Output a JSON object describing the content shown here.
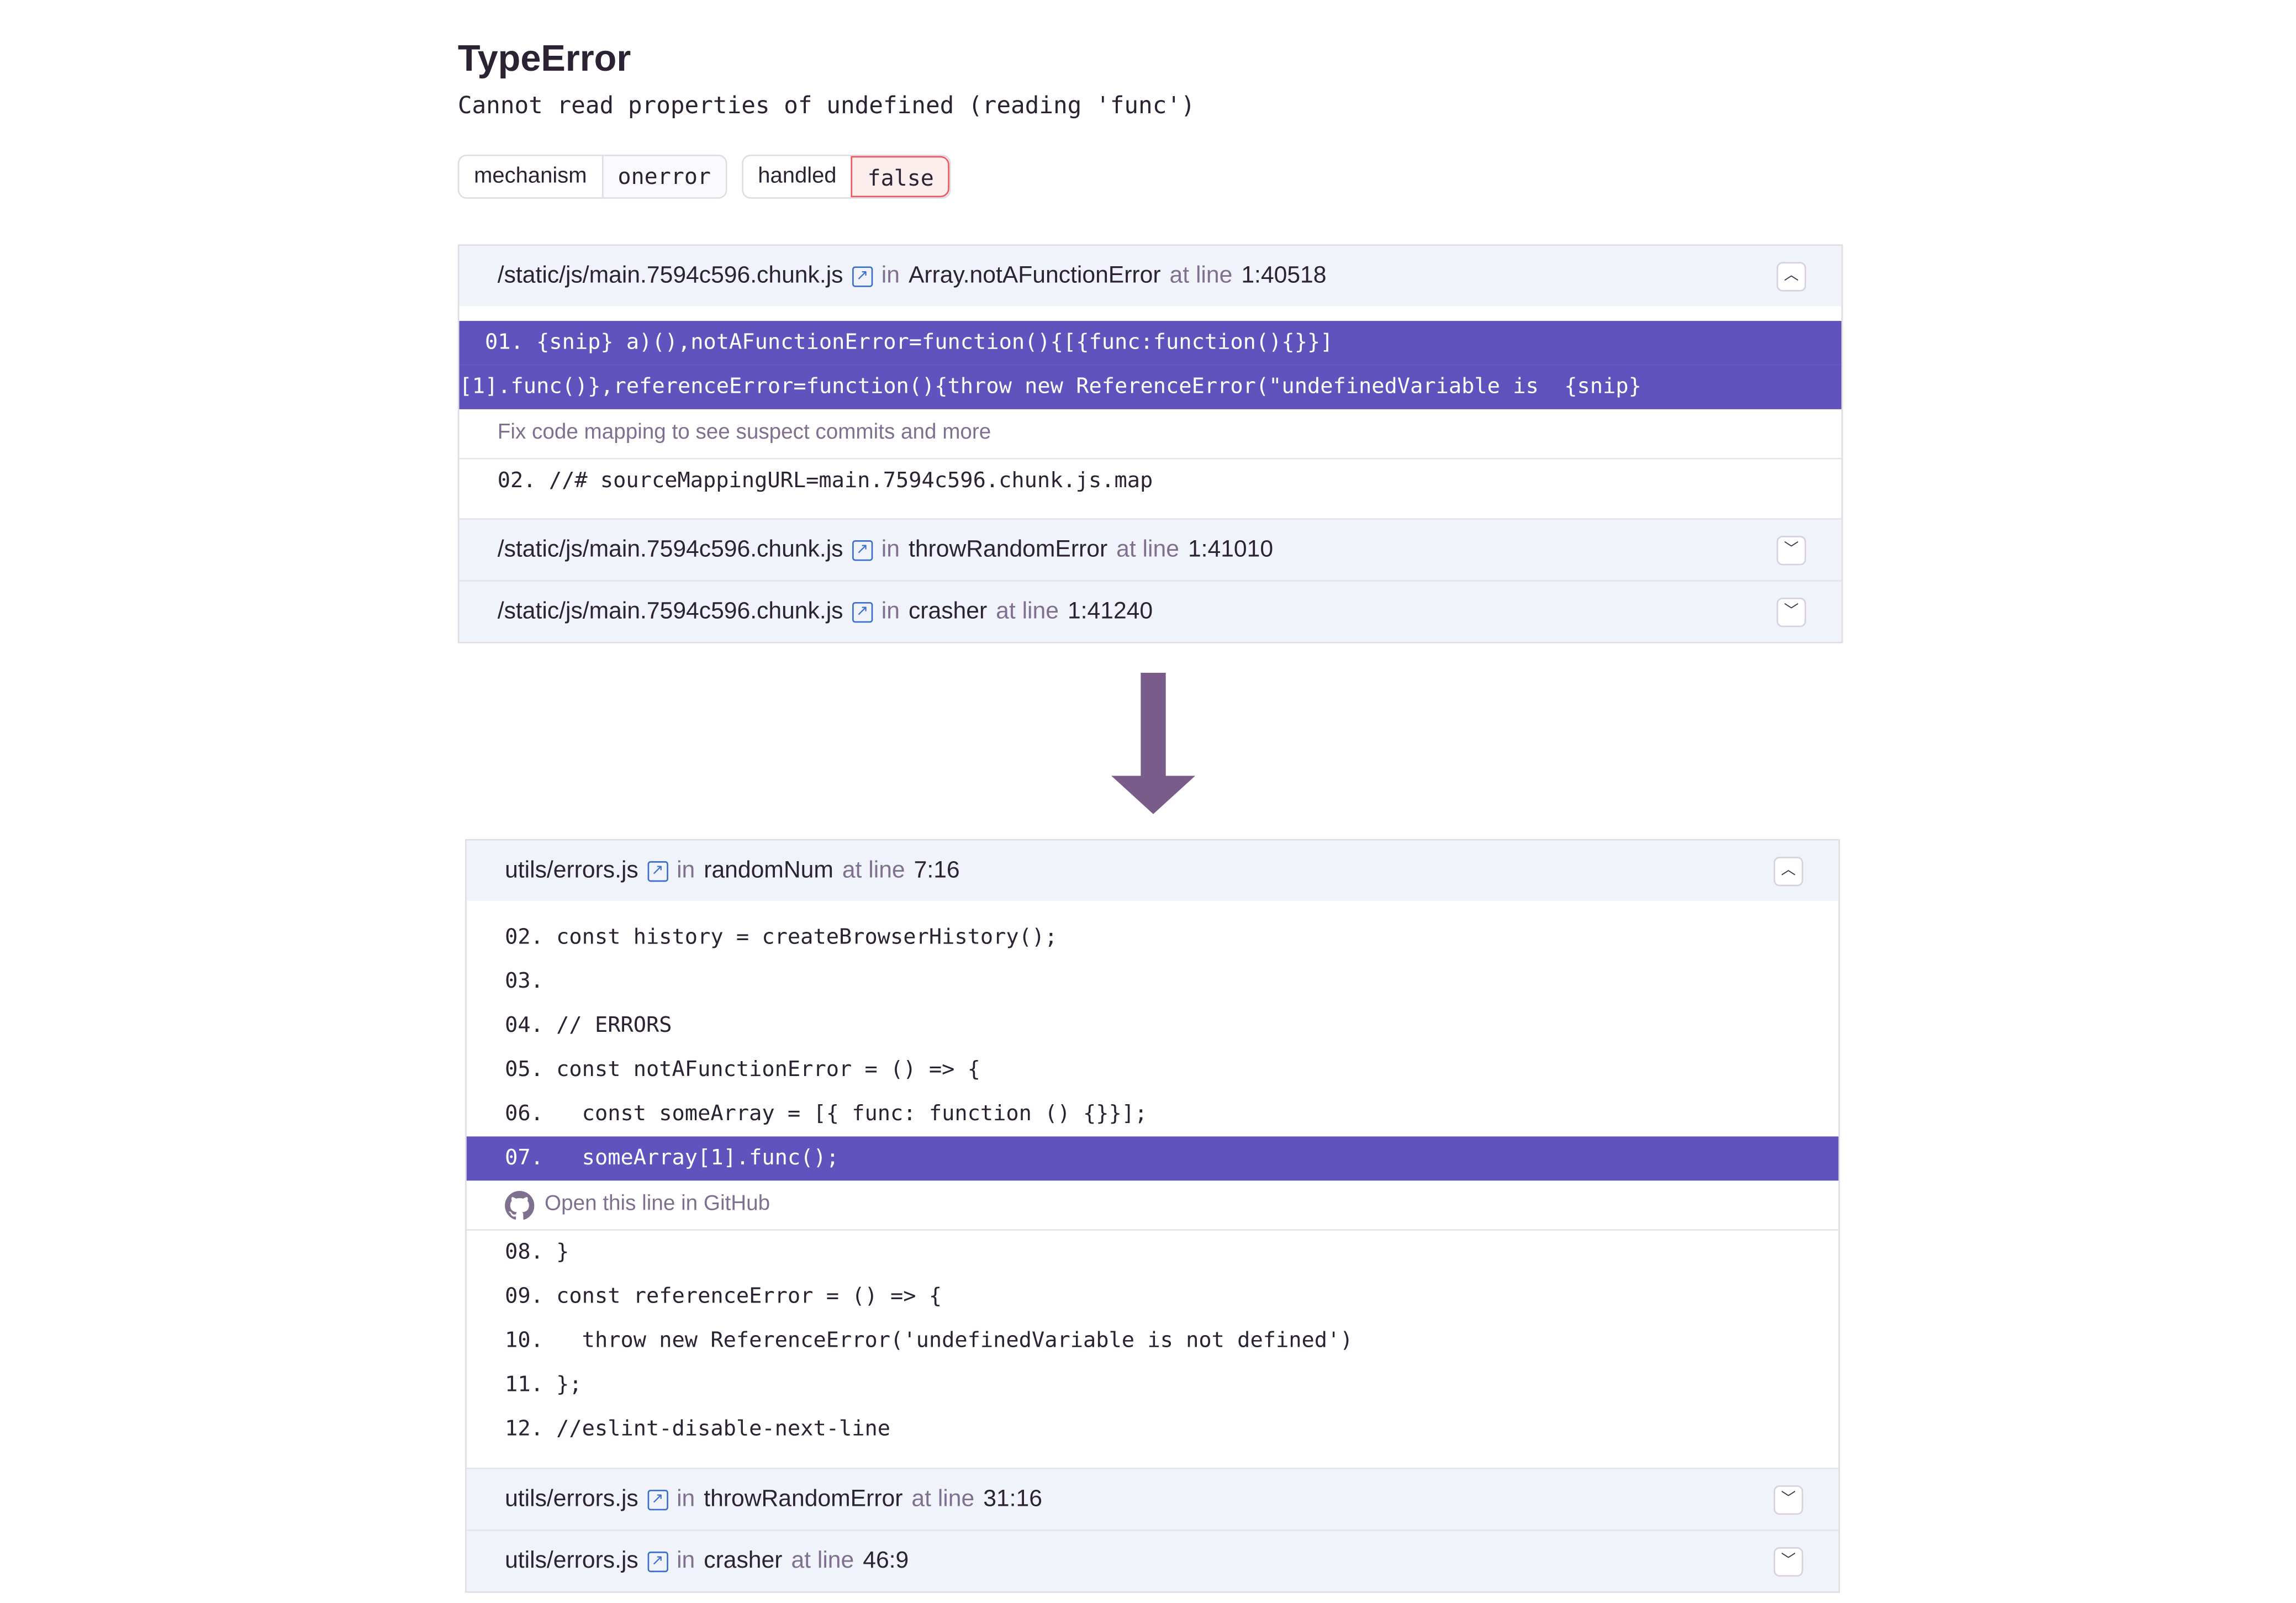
{
  "error": {
    "type": "TypeError",
    "message": "Cannot read properties of undefined (reading 'func')"
  },
  "tags": [
    {
      "key": "mechanism",
      "value": "onerror"
    },
    {
      "key": "handled",
      "value": "false"
    }
  ],
  "colors": {
    "highlight": "#6153bd",
    "danger": "#f0565b",
    "link": "#3b6ecc",
    "arrow": "#7a5c8a"
  },
  "minified": {
    "frames": [
      {
        "file": "/static/js/main.7594c596.chunk.js",
        "in": "in",
        "func": "Array.notAFunctionError",
        "at": "at line",
        "loc": "1:40518",
        "expanded": true
      },
      {
        "file": "/static/js/main.7594c596.chunk.js",
        "in": "in",
        "func": "throwRandomError",
        "at": "at line",
        "loc": "1:41010",
        "expanded": false
      },
      {
        "file": "/static/js/main.7594c596.chunk.js",
        "in": "in",
        "func": "crasher",
        "at": "at line",
        "loc": "1:41240",
        "expanded": false
      }
    ],
    "highlight_lines": [
      "  01. {snip} a)(),notAFunctionError=function(){[{func:function(){}}]",
      "[1].func()},referenceError=function(){throw new ReferenceError(\"undefinedVariable is  {snip}"
    ],
    "note": "Fix code mapping to see suspect commits and more",
    "after_lines": [
      "02. //# sourceMappingURL=main.7594c596.chunk.js.map"
    ]
  },
  "mapped": {
    "frames": [
      {
        "file": "utils/errors.js",
        "in": "in",
        "func": "randomNum",
        "at": "at line",
        "loc": "7:16",
        "expanded": true
      },
      {
        "file": "utils/errors.js",
        "in": "in",
        "func": "throwRandomError",
        "at": "at line",
        "loc": "31:16",
        "expanded": false
      },
      {
        "file": "utils/errors.js",
        "in": "in",
        "func": "crasher",
        "at": "at line",
        "loc": "46:9",
        "expanded": false
      }
    ],
    "before_lines": [
      "02. const history = createBrowserHistory();",
      "03.",
      "04. // ERRORS",
      "05. const notAFunctionError = () => {",
      "06.   const someArray = [{ func: function () {}}];"
    ],
    "highlight_line": "07.   someArray[1].func();",
    "note": "Open this line in GitHub",
    "after_lines": [
      "08. }",
      "09. const referenceError = () => {",
      "10.   throw new ReferenceError('undefinedVariable is not defined')",
      "11. };",
      "12. //eslint-disable-next-line"
    ]
  }
}
